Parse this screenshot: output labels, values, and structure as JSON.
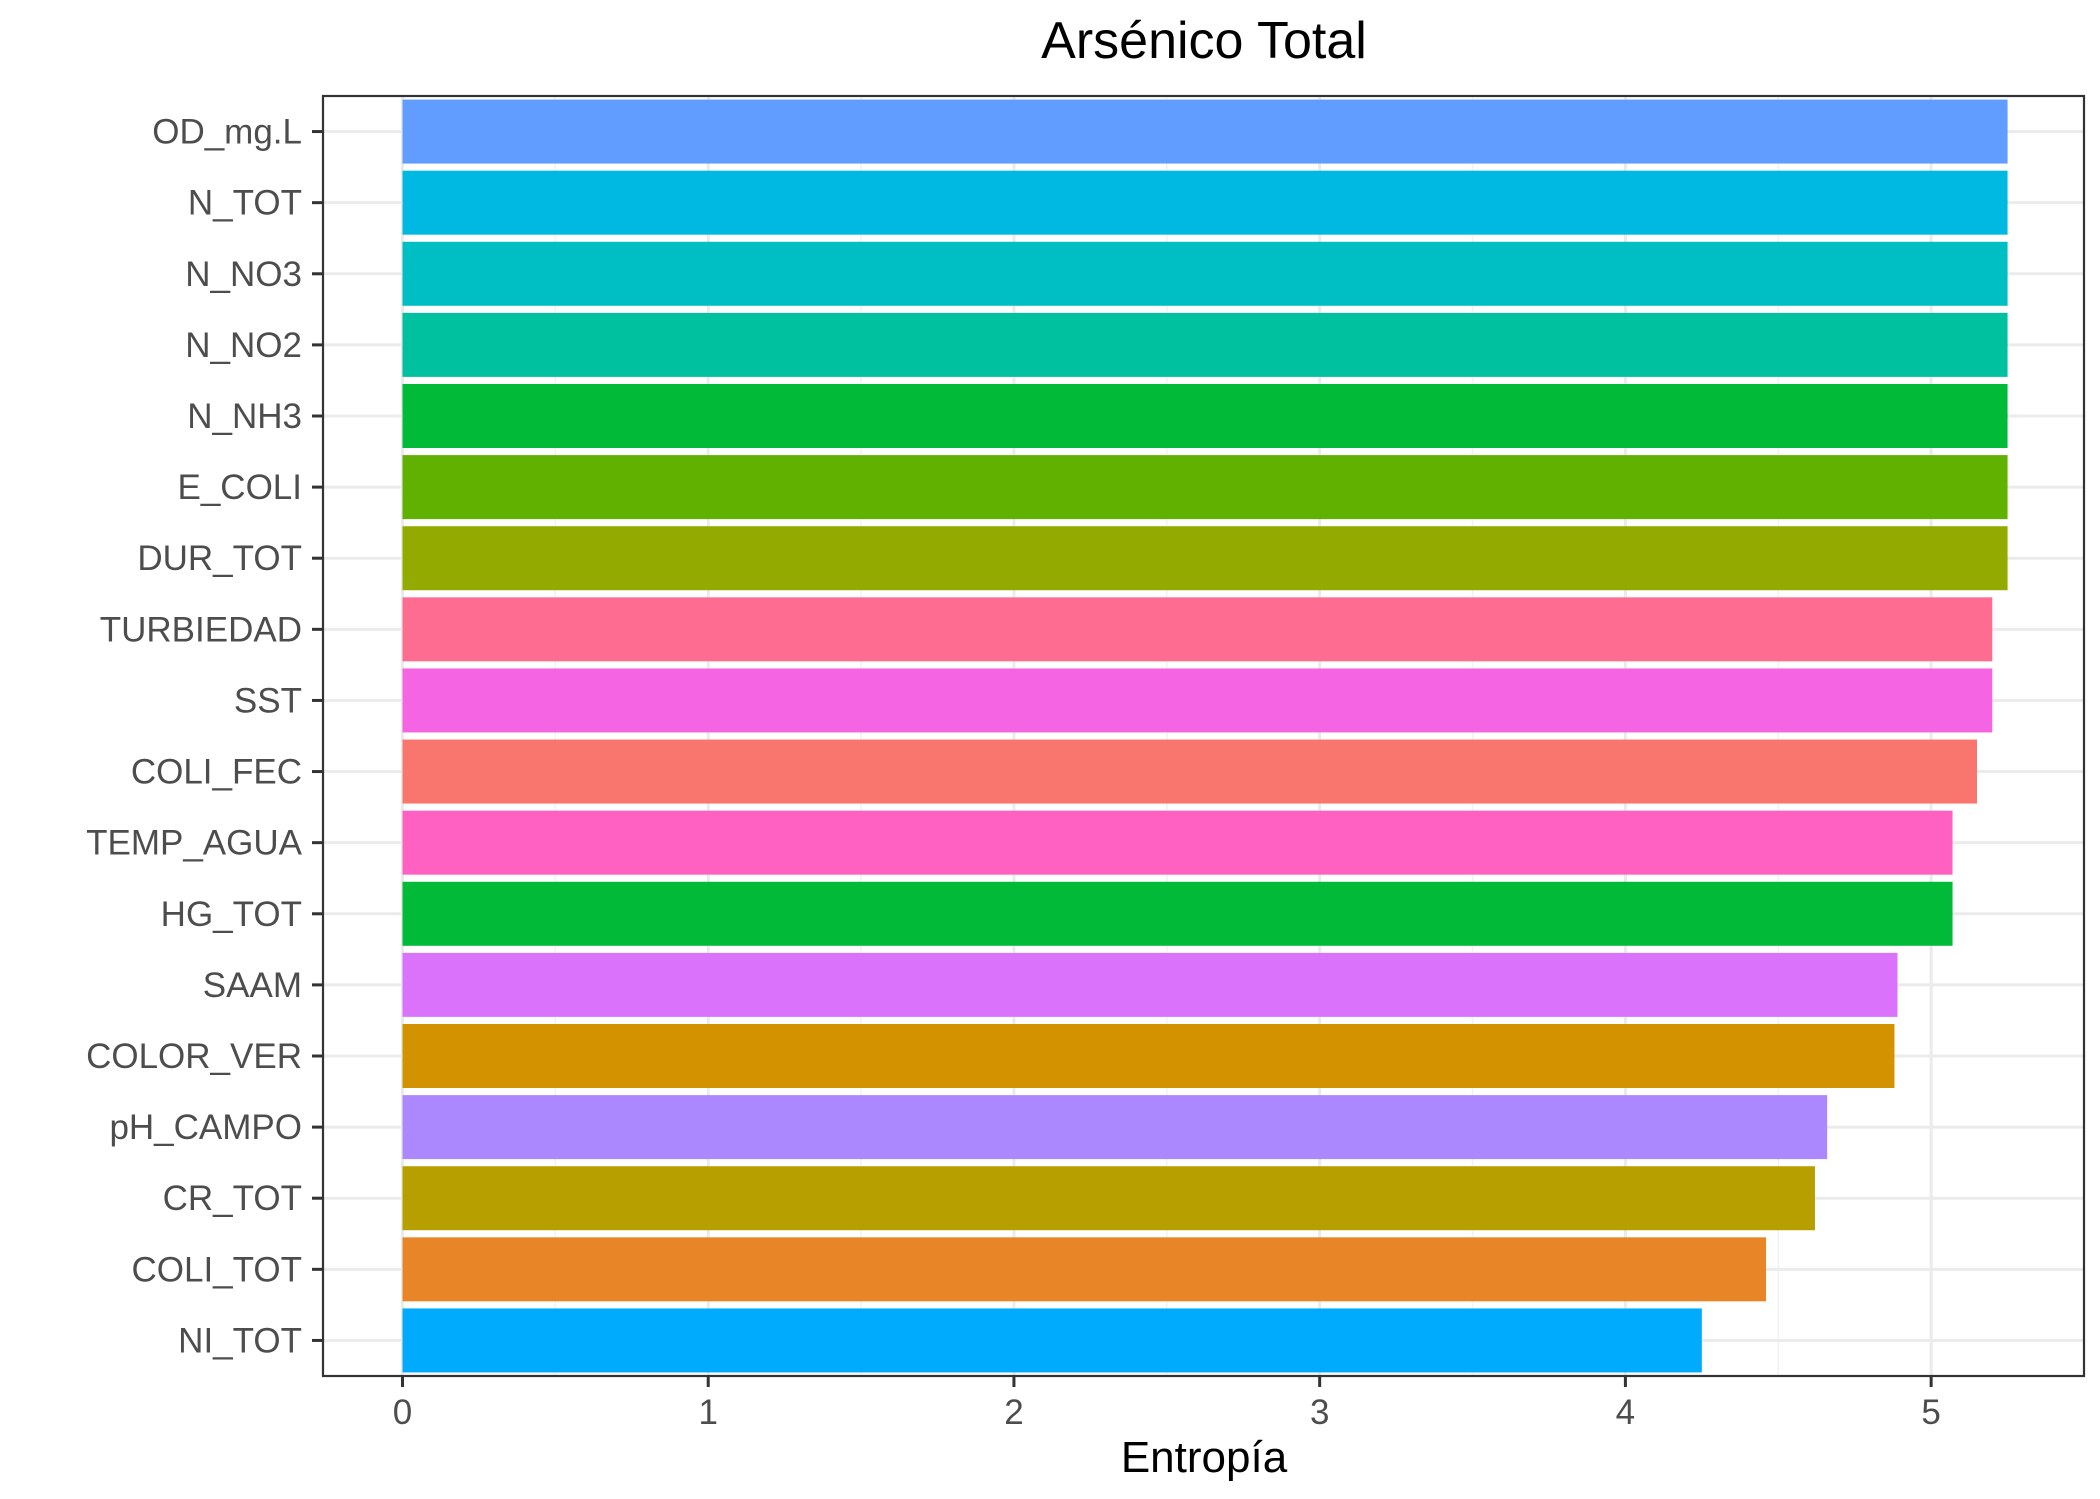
{
  "chart_data": {
    "type": "bar",
    "orientation": "horizontal",
    "title": "Arsénico Total",
    "xlabel": "Entropía",
    "ylabel": "",
    "xlim": [
      -0.26,
      5.5
    ],
    "x_ticks": [
      "0",
      "1",
      "2",
      "3",
      "4",
      "5"
    ],
    "grid": true,
    "legend": "none",
    "categories": [
      "OD_mg.L",
      "N_TOT",
      "N_NO3",
      "N_NO2",
      "N_NH3",
      "E_COLI",
      "DUR_TOT",
      "TURBIEDAD",
      "SST",
      "COLI_FEC",
      "TEMP_AGUA",
      "HG_TOT",
      "SAAM",
      "COLOR_VER",
      "pH_CAMPO",
      "CR_TOT",
      "COLI_TOT",
      "NI_TOT"
    ],
    "values": [
      5.25,
      5.25,
      5.25,
      5.25,
      5.25,
      5.25,
      5.25,
      5.2,
      5.2,
      5.15,
      5.07,
      5.07,
      4.89,
      4.88,
      4.66,
      4.62,
      4.46,
      4.25
    ],
    "colors": [
      "#619CFF",
      "#00B9E3",
      "#00BFC4",
      "#00C19F",
      "#00BA38",
      "#61B200",
      "#93AA00",
      "#FF6C91",
      "#F564E3",
      "#F8766D",
      "#FF61C3",
      "#00BA38",
      "#DB72FB",
      "#D39200",
      "#AC88FF",
      "#B79F00",
      "#E88526",
      "#00ABFD"
    ]
  }
}
